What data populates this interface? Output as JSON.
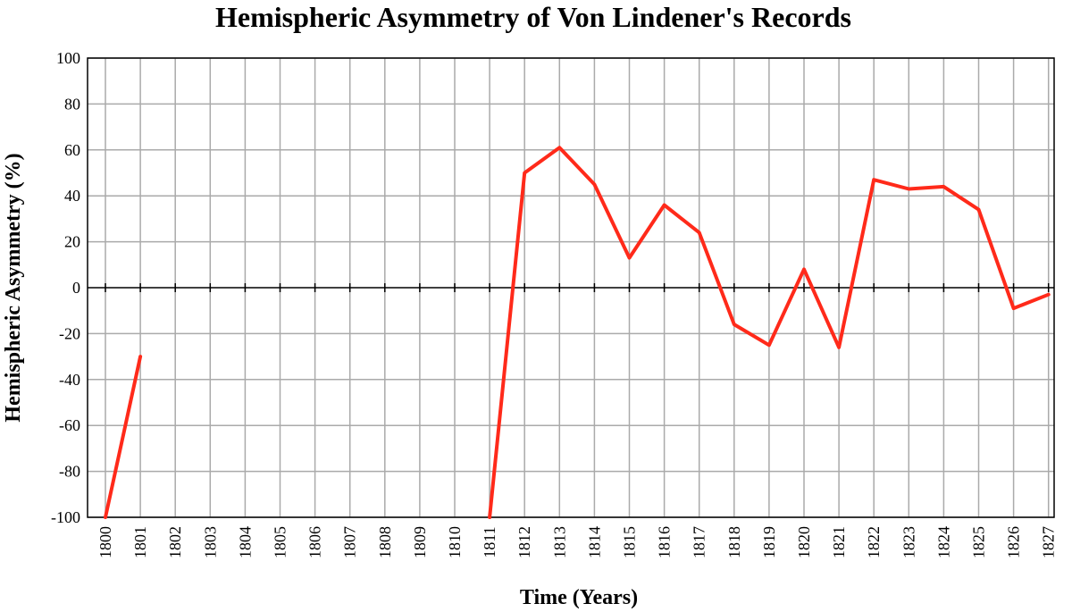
{
  "chart_data": {
    "type": "line",
    "title": "Hemispheric Asymmetry of Von Lindener's Records",
    "xlabel": "Time (Years)",
    "ylabel": "Hemispheric Asymmetry (%)",
    "ylim": [
      -100,
      100
    ],
    "yticks": [
      100,
      80,
      60,
      40,
      20,
      0,
      -20,
      -40,
      -60,
      -80,
      -100
    ],
    "xticks": [
      "1800",
      "1801",
      "1802",
      "1803",
      "1804",
      "1805",
      "1806",
      "1807",
      "1808",
      "1809",
      "1810",
      "1811",
      "1812",
      "1813",
      "1814",
      "1815",
      "1816",
      "1817",
      "1818",
      "1819",
      "1820",
      "1821",
      "1822",
      "1823",
      "1824",
      "1825",
      "1826",
      "1827"
    ],
    "grid": true,
    "series": [
      {
        "color": "#ff2a1a",
        "segments": [
          [
            {
              "x": 1800,
              "y": -100
            },
            {
              "x": 1801,
              "y": -30
            }
          ],
          [
            {
              "x": 1811,
              "y": -100
            },
            {
              "x": 1812,
              "y": 50
            },
            {
              "x": 1813,
              "y": 61
            },
            {
              "x": 1814,
              "y": 45
            },
            {
              "x": 1815,
              "y": 13
            },
            {
              "x": 1816,
              "y": 36
            },
            {
              "x": 1817,
              "y": 24
            },
            {
              "x": 1818,
              "y": -16
            },
            {
              "x": 1819,
              "y": -25
            },
            {
              "x": 1820,
              "y": 8
            },
            {
              "x": 1821,
              "y": -26
            },
            {
              "x": 1822,
              "y": 47
            },
            {
              "x": 1823,
              "y": 43
            },
            {
              "x": 1824,
              "y": 44
            },
            {
              "x": 1825,
              "y": 34
            },
            {
              "x": 1826,
              "y": -9
            },
            {
              "x": 1827,
              "y": -3
            }
          ]
        ]
      }
    ]
  }
}
